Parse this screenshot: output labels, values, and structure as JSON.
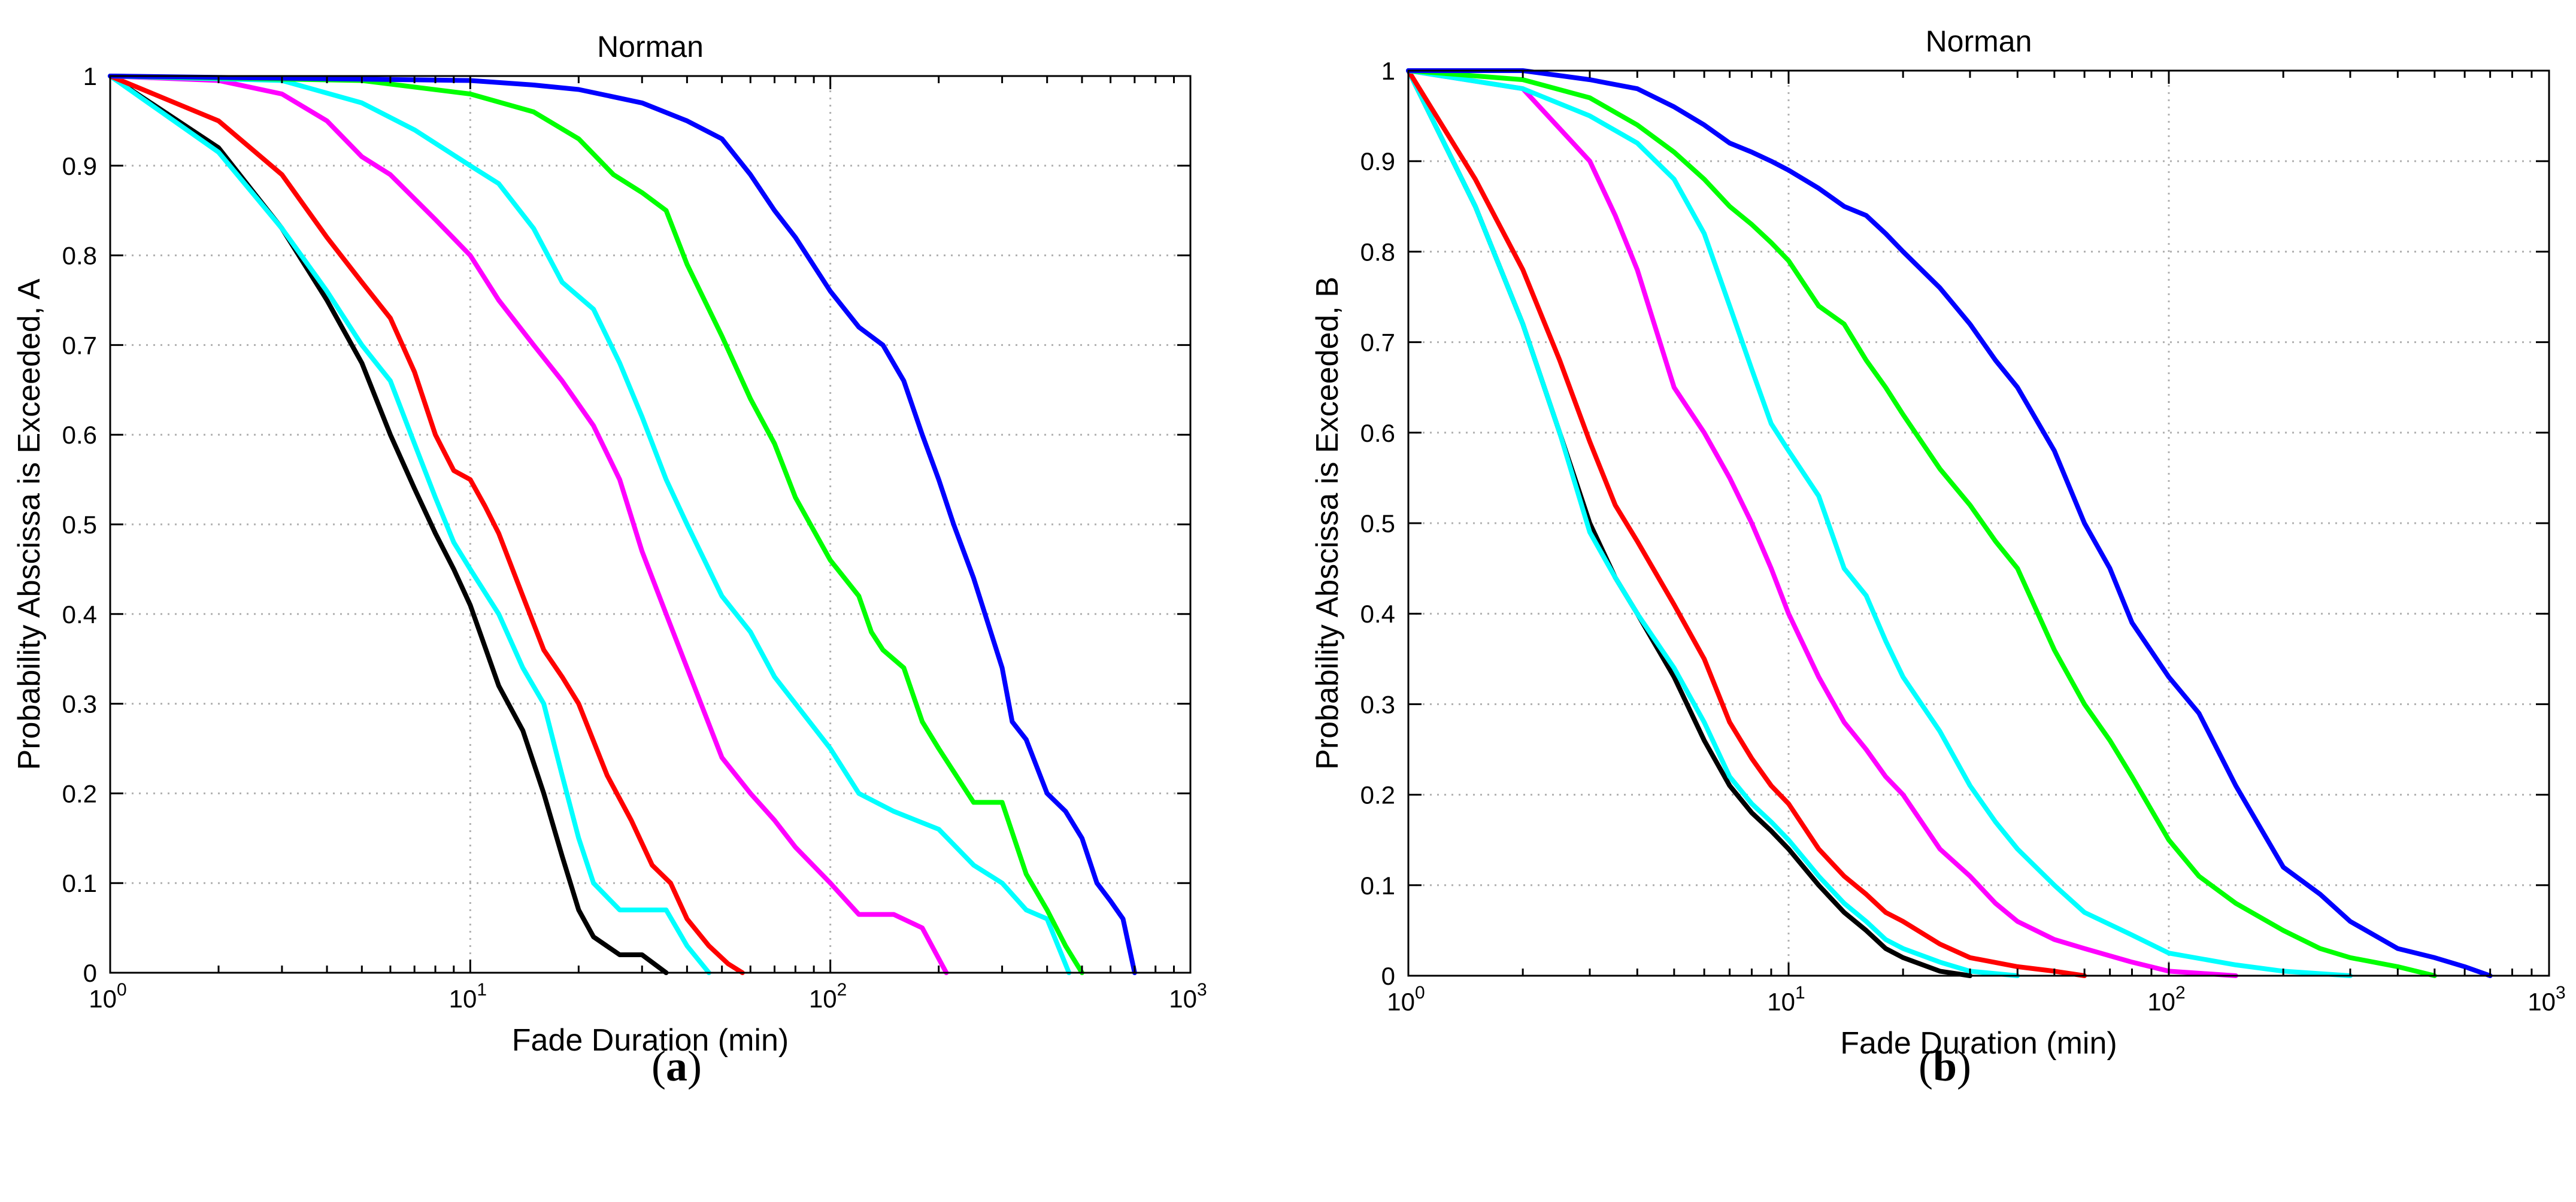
{
  "chart_data": [
    {
      "type": "line",
      "title": "Norman",
      "xlabel": "Fade Duration (min)",
      "ylabel": "Probability Abscissa is Exceeded, A",
      "xscale": "log",
      "xlim": [
        1,
        1000
      ],
      "ylim": [
        0,
        1
      ],
      "grid": true,
      "x_tick_labels": [
        {
          "base": "10",
          "exp": "0"
        },
        {
          "base": "10",
          "exp": "1"
        },
        {
          "base": "10",
          "exp": "2"
        },
        {
          "base": "10",
          "exp": "3"
        }
      ],
      "y_tick_labels": [
        "0",
        "0.1",
        "0.2",
        "0.3",
        "0.4",
        "0.5",
        "0.6",
        "0.7",
        "0.8",
        "0.9",
        "1"
      ],
      "panel_label": "a",
      "series": [
        {
          "name": "black",
          "color": "#000000",
          "x": [
            1,
            2,
            3,
            4,
            5,
            6,
            7,
            8,
            9,
            10,
            12,
            14,
            16,
            18,
            20,
            22,
            26,
            30,
            35
          ],
          "y": [
            1,
            0.92,
            0.83,
            0.75,
            0.68,
            0.6,
            0.54,
            0.49,
            0.45,
            0.41,
            0.32,
            0.27,
            0.2,
            0.13,
            0.07,
            0.04,
            0.02,
            0.02,
            0
          ]
        },
        {
          "name": "cyan-1",
          "color": "#00ffff",
          "x": [
            1,
            2,
            3,
            4,
            5,
            6,
            7,
            8,
            9,
            10,
            12,
            14,
            16,
            18,
            20,
            22,
            26,
            30,
            35,
            40,
            46
          ],
          "y": [
            1,
            0.915,
            0.83,
            0.76,
            0.7,
            0.66,
            0.59,
            0.53,
            0.48,
            0.45,
            0.4,
            0.34,
            0.3,
            0.22,
            0.15,
            0.1,
            0.07,
            0.07,
            0.07,
            0.03,
            0
          ]
        },
        {
          "name": "red",
          "color": "#ff0000",
          "x": [
            1,
            2,
            3,
            4,
            5,
            6,
            7,
            8,
            9,
            10,
            11,
            12,
            14,
            16,
            18,
            20,
            24,
            28,
            32,
            36,
            40,
            46,
            52,
            57
          ],
          "y": [
            1,
            0.95,
            0.89,
            0.82,
            0.77,
            0.73,
            0.67,
            0.6,
            0.56,
            0.55,
            0.52,
            0.49,
            0.42,
            0.36,
            0.33,
            0.3,
            0.22,
            0.17,
            0.12,
            0.1,
            0.06,
            0.03,
            0.01,
            0
          ]
        },
        {
          "name": "magenta",
          "color": "#ff00ff",
          "x": [
            1,
            2,
            3,
            4,
            5,
            6,
            8,
            10,
            12,
            15,
            18,
            22,
            26,
            30,
            35,
            40,
            50,
            60,
            70,
            80,
            100,
            120,
            150,
            180,
            210
          ],
          "y": [
            1,
            0.995,
            0.98,
            0.95,
            0.91,
            0.89,
            0.84,
            0.8,
            0.75,
            0.7,
            0.66,
            0.61,
            0.55,
            0.47,
            0.4,
            0.34,
            0.24,
            0.2,
            0.17,
            0.14,
            0.1,
            0.065,
            0.065,
            0.05,
            0
          ]
        },
        {
          "name": "cyan-2",
          "color": "#00ffff",
          "x": [
            1,
            3,
            5,
            7,
            10,
            12,
            15,
            18,
            22,
            26,
            30,
            35,
            40,
            50,
            60,
            70,
            80,
            100,
            120,
            150,
            200,
            250,
            300,
            350,
            400,
            460
          ],
          "y": [
            1,
            0.995,
            0.97,
            0.94,
            0.9,
            0.88,
            0.83,
            0.77,
            0.74,
            0.68,
            0.62,
            0.55,
            0.5,
            0.42,
            0.38,
            0.33,
            0.3,
            0.25,
            0.2,
            0.18,
            0.16,
            0.12,
            0.1,
            0.07,
            0.06,
            0
          ]
        },
        {
          "name": "green",
          "color": "#00ff00",
          "x": [
            1,
            5,
            10,
            15,
            20,
            25,
            30,
            35,
            40,
            50,
            60,
            70,
            80,
            100,
            120,
            130,
            140,
            160,
            180,
            200,
            250,
            300,
            350,
            400,
            450,
            500
          ],
          "y": [
            1,
            0.995,
            0.98,
            0.96,
            0.93,
            0.89,
            0.87,
            0.85,
            0.79,
            0.71,
            0.64,
            0.59,
            0.53,
            0.46,
            0.42,
            0.38,
            0.36,
            0.34,
            0.28,
            0.25,
            0.19,
            0.19,
            0.11,
            0.07,
            0.03,
            0
          ]
        },
        {
          "name": "blue",
          "color": "#0000ff",
          "x": [
            1,
            10,
            15,
            20,
            30,
            40,
            50,
            60,
            70,
            80,
            100,
            120,
            140,
            160,
            180,
            200,
            220,
            250,
            300,
            320,
            350,
            400,
            450,
            500,
            550,
            600,
            650,
            700
          ],
          "y": [
            1,
            0.995,
            0.99,
            0.985,
            0.97,
            0.95,
            0.93,
            0.89,
            0.85,
            0.82,
            0.76,
            0.72,
            0.7,
            0.66,
            0.6,
            0.55,
            0.5,
            0.44,
            0.34,
            0.28,
            0.26,
            0.2,
            0.18,
            0.15,
            0.1,
            0.08,
            0.06,
            0
          ]
        }
      ]
    },
    {
      "type": "line",
      "title": "Norman",
      "xlabel": "Fade Duration (min)",
      "ylabel": "Probability Abscissa is Exceeded, B",
      "xscale": "log",
      "xlim": [
        1,
        1000
      ],
      "ylim": [
        0,
        1
      ],
      "grid": true,
      "x_tick_labels": [
        {
          "base": "10",
          "exp": "0"
        },
        {
          "base": "10",
          "exp": "1"
        },
        {
          "base": "10",
          "exp": "2"
        },
        {
          "base": "10",
          "exp": "3"
        }
      ],
      "y_tick_labels": [
        "0",
        "0.1",
        "0.2",
        "0.3",
        "0.4",
        "0.5",
        "0.6",
        "0.7",
        "0.8",
        "0.9",
        "1"
      ],
      "panel_label": "b",
      "series": [
        {
          "name": "black",
          "color": "#000000",
          "x": [
            1,
            1.5,
            2,
            2.5,
            3,
            3.5,
            4,
            5,
            6,
            7,
            8,
            9,
            10,
            12,
            14,
            16,
            18,
            20,
            25,
            30
          ],
          "y": [
            1,
            0.85,
            0.72,
            0.6,
            0.5,
            0.44,
            0.4,
            0.33,
            0.26,
            0.21,
            0.18,
            0.16,
            0.14,
            0.1,
            0.07,
            0.05,
            0.03,
            0.02,
            0.005,
            0
          ]
        },
        {
          "name": "cyan-1",
          "color": "#00ffff",
          "x": [
            1,
            1.5,
            2,
            2.5,
            3,
            3.5,
            4,
            5,
            6,
            7,
            8,
            9,
            10,
            12,
            14,
            16,
            18,
            20,
            25,
            30,
            40
          ],
          "y": [
            1,
            0.85,
            0.72,
            0.6,
            0.49,
            0.44,
            0.4,
            0.34,
            0.28,
            0.22,
            0.19,
            0.17,
            0.15,
            0.11,
            0.08,
            0.06,
            0.04,
            0.03,
            0.015,
            0.005,
            0
          ]
        },
        {
          "name": "red",
          "color": "#ff0000",
          "x": [
            1,
            1.5,
            2,
            2.5,
            3,
            3.5,
            4,
            5,
            6,
            7,
            8,
            9,
            10,
            12,
            14,
            16,
            18,
            20,
            25,
            30,
            40,
            50,
            60
          ],
          "y": [
            1,
            0.88,
            0.78,
            0.68,
            0.59,
            0.52,
            0.48,
            0.41,
            0.35,
            0.28,
            0.24,
            0.21,
            0.19,
            0.14,
            0.11,
            0.09,
            0.07,
            0.06,
            0.035,
            0.02,
            0.01,
            0.005,
            0
          ]
        },
        {
          "name": "magenta",
          "color": "#ff00ff",
          "x": [
            1,
            2,
            3,
            3.5,
            4,
            5,
            6,
            7,
            8,
            9,
            10,
            12,
            14,
            16,
            18,
            20,
            25,
            30,
            35,
            40,
            50,
            60,
            80,
            100,
            150
          ],
          "y": [
            1,
            0.98,
            0.9,
            0.84,
            0.78,
            0.65,
            0.6,
            0.55,
            0.5,
            0.45,
            0.4,
            0.33,
            0.28,
            0.25,
            0.22,
            0.2,
            0.14,
            0.11,
            0.08,
            0.06,
            0.04,
            0.03,
            0.015,
            0.005,
            0
          ]
        },
        {
          "name": "cyan-2",
          "color": "#00ffff",
          "x": [
            1,
            2,
            3,
            4,
            5,
            6,
            7,
            8,
            9,
            10,
            12,
            14,
            16,
            18,
            20,
            25,
            30,
            35,
            40,
            50,
            60,
            80,
            100,
            150,
            200,
            300
          ],
          "y": [
            1,
            0.98,
            0.95,
            0.92,
            0.88,
            0.82,
            0.74,
            0.67,
            0.61,
            0.58,
            0.53,
            0.45,
            0.42,
            0.37,
            0.33,
            0.27,
            0.21,
            0.17,
            0.14,
            0.1,
            0.07,
            0.045,
            0.025,
            0.012,
            0.005,
            0
          ]
        },
        {
          "name": "green",
          "color": "#00ff00",
          "x": [
            1,
            2,
            3,
            4,
            5,
            6,
            7,
            8,
            9,
            10,
            12,
            14,
            16,
            18,
            20,
            25,
            30,
            35,
            40,
            50,
            60,
            70,
            80,
            100,
            120,
            150,
            200,
            250,
            300,
            400,
            500
          ],
          "y": [
            1,
            0.99,
            0.97,
            0.94,
            0.91,
            0.88,
            0.85,
            0.83,
            0.81,
            0.79,
            0.74,
            0.72,
            0.68,
            0.65,
            0.62,
            0.56,
            0.52,
            0.48,
            0.45,
            0.36,
            0.3,
            0.26,
            0.22,
            0.15,
            0.11,
            0.08,
            0.05,
            0.03,
            0.02,
            0.01,
            0
          ]
        },
        {
          "name": "blue",
          "color": "#0000ff",
          "x": [
            1,
            2,
            3,
            4,
            5,
            6,
            7,
            8,
            9,
            10,
            12,
            14,
            16,
            18,
            20,
            25,
            30,
            35,
            40,
            50,
            60,
            70,
            80,
            100,
            120,
            150,
            200,
            250,
            300,
            400,
            500,
            600,
            700
          ],
          "y": [
            1,
            1,
            0.99,
            0.98,
            0.96,
            0.94,
            0.92,
            0.91,
            0.9,
            0.89,
            0.87,
            0.85,
            0.84,
            0.82,
            0.8,
            0.76,
            0.72,
            0.68,
            0.65,
            0.58,
            0.5,
            0.45,
            0.39,
            0.33,
            0.29,
            0.21,
            0.12,
            0.09,
            0.06,
            0.03,
            0.02,
            0.01,
            0
          ]
        }
      ]
    }
  ]
}
